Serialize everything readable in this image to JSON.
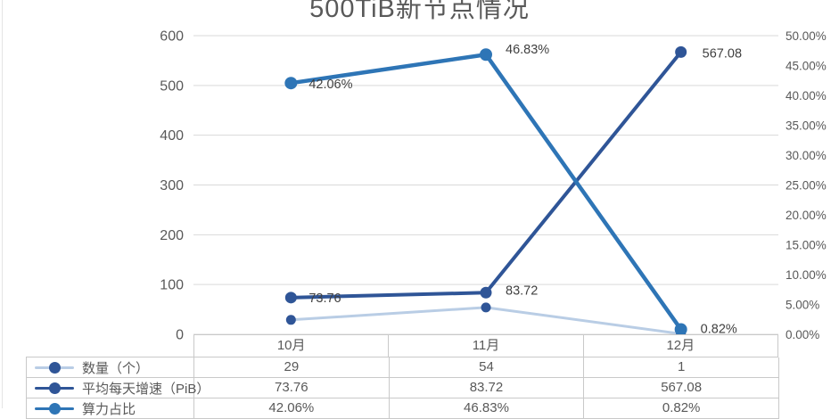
{
  "title": "500TiB新节点情况",
  "colors": {
    "title_text": "#595959",
    "axis_text": "#595959",
    "data_label_text": "#404040",
    "gridline": "#d9d9d9",
    "table_border": "#c9c9c9",
    "series_count_line": "#b9cde5",
    "series_count_marker": "#2f5597",
    "series_growth": "#2f5597",
    "series_power": "#2e75b6"
  },
  "chart_data": {
    "type": "line",
    "title": "500TiB新节点情况",
    "categories": [
      "10月",
      "11月",
      "12月"
    ],
    "series": [
      {
        "name": "数量（个）",
        "axis": "left",
        "values": [
          29,
          54,
          1
        ],
        "line_color": "#b9cde5",
        "marker_color": "#2f5597",
        "line_width": 3,
        "marker_r": 5.5,
        "label_texts": null
      },
      {
        "name": "平均每天增速（PiB）",
        "axis": "left",
        "values": [
          73.76,
          83.72,
          567.08
        ],
        "line_color": "#2f5597",
        "marker_color": "#2f5597",
        "line_width": 4,
        "marker_r": 6.5,
        "label_texts": [
          "73.76",
          "83.72",
          "567.08"
        ],
        "label_offsets": [
          [
            20,
            0
          ],
          [
            22,
            -3
          ],
          [
            24,
            1
          ]
        ]
      },
      {
        "name": "算力占比",
        "axis": "right",
        "values": [
          42.06,
          46.83,
          0.82
        ],
        "line_color": "#2e75b6",
        "marker_color": "#2e75b6",
        "line_width": 4.5,
        "marker_r": 7,
        "label_texts": [
          "42.06%",
          "46.83%",
          "0.82%"
        ],
        "label_offsets": [
          [
            20,
            1
          ],
          [
            22,
            -6
          ],
          [
            22,
            -1
          ]
        ]
      }
    ],
    "left_axis": {
      "min": 0,
      "max": 600,
      "step": 100,
      "ticks": [
        "600",
        "500",
        "400",
        "300",
        "200",
        "100",
        "0"
      ]
    },
    "right_axis": {
      "min": 0,
      "max": 50,
      "step": 5,
      "ticks": [
        "50.00%",
        "45.00%",
        "40.00%",
        "35.00%",
        "30.00%",
        "25.00%",
        "20.00%",
        "15.00%",
        "10.00%",
        "5.00%",
        "0.00%"
      ]
    },
    "grid": true,
    "legend_position": "table-left-column"
  },
  "table": {
    "header": [
      "10月",
      "11月",
      "12月"
    ],
    "rows": [
      {
        "label": "数量（个）",
        "values": [
          "29",
          "54",
          "1"
        ]
      },
      {
        "label": "平均每天增速（PiB）",
        "values": [
          "73.76",
          "83.72",
          "567.08"
        ]
      },
      {
        "label": "算力占比",
        "values": [
          "42.06%",
          "46.83%",
          "0.82%"
        ]
      }
    ]
  }
}
